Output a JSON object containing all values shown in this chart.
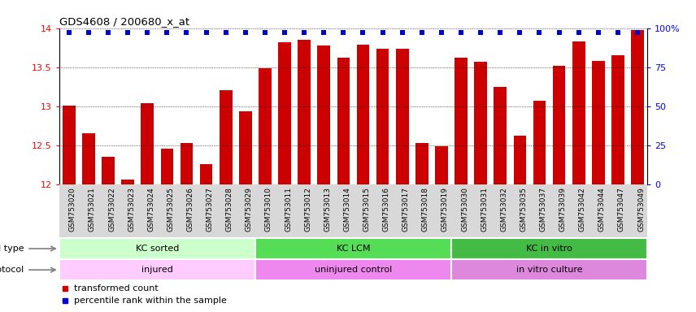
{
  "title": "GDS4608 / 200680_x_at",
  "samples": [
    "GSM753020",
    "GSM753021",
    "GSM753022",
    "GSM753023",
    "GSM753024",
    "GSM753025",
    "GSM753026",
    "GSM753027",
    "GSM753028",
    "GSM753029",
    "GSM753010",
    "GSM753011",
    "GSM753012",
    "GSM753013",
    "GSM753014",
    "GSM753015",
    "GSM753016",
    "GSM753017",
    "GSM753018",
    "GSM753019",
    "GSM753030",
    "GSM753031",
    "GSM753032",
    "GSM753035",
    "GSM753037",
    "GSM753039",
    "GSM753042",
    "GSM753044",
    "GSM753047",
    "GSM753049"
  ],
  "bar_values": [
    13.01,
    12.65,
    12.35,
    12.06,
    13.04,
    12.45,
    12.53,
    12.26,
    13.2,
    12.93,
    13.49,
    13.82,
    13.85,
    13.78,
    13.62,
    13.79,
    13.74,
    13.74,
    12.53,
    12.48,
    13.62,
    13.57,
    13.25,
    12.62,
    13.07,
    13.52,
    13.83,
    13.58,
    13.65,
    13.97
  ],
  "bar_color": "#cc0000",
  "percentile_color": "#0000cc",
  "ylim_min": 12.0,
  "ylim_max": 14.0,
  "yticks_left": [
    12,
    12.5,
    13,
    13.5,
    14
  ],
  "yticks_right": [
    0,
    25,
    50,
    75,
    100
  ],
  "cell_type_groups": [
    {
      "label": "KC sorted",
      "start": 0,
      "end": 10,
      "color": "#ccffcc"
    },
    {
      "label": "KC LCM",
      "start": 10,
      "end": 20,
      "color": "#55dd55"
    },
    {
      "label": "KC in vitro",
      "start": 20,
      "end": 30,
      "color": "#44bb44"
    }
  ],
  "protocol_groups": [
    {
      "label": "injured",
      "start": 0,
      "end": 10,
      "color": "#ffccff"
    },
    {
      "label": "uninjured control",
      "start": 10,
      "end": 20,
      "color": "#ee88ee"
    },
    {
      "label": "in vitro culture",
      "start": 20,
      "end": 30,
      "color": "#dd88dd"
    }
  ],
  "cell_type_label": "cell type",
  "protocol_label": "protocol",
  "legend_bar_label": "transformed count",
  "legend_perc_label": "percentile rank within the sample",
  "xtick_bg_color": "#d8d8d8"
}
